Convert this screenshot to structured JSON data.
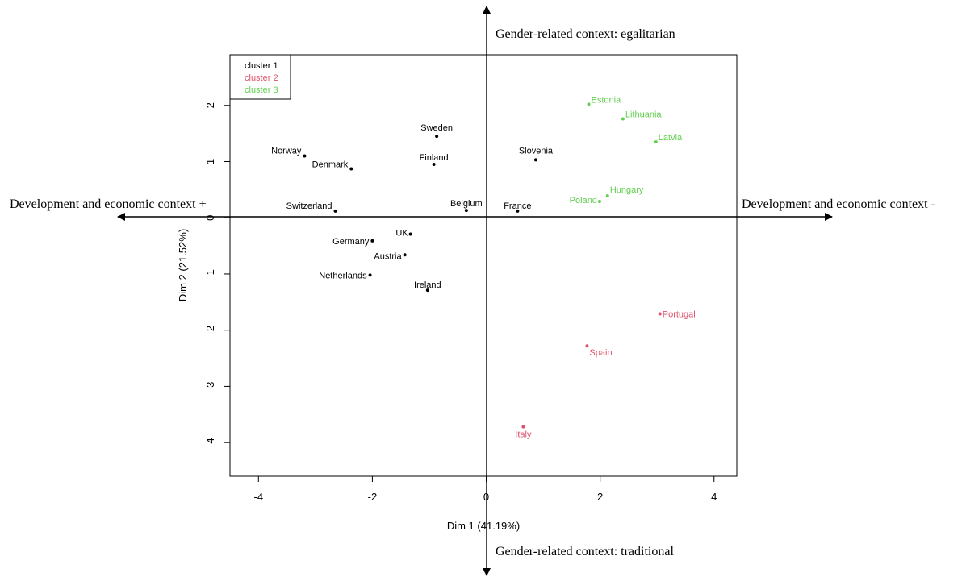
{
  "chart_data": {
    "type": "scatter",
    "xlabel": "Dim 1 (41.19%)",
    "ylabel": "Dim 2 (21.52%)",
    "xlim": [
      -4.5,
      4.4
    ],
    "ylim": [
      -4.6,
      2.9
    ],
    "x_ticks": [
      -4,
      -2,
      0,
      2,
      4
    ],
    "y_ticks": [
      2,
      1,
      0,
      -1,
      -2,
      -3,
      -4
    ],
    "reference_lines": {
      "x": 0,
      "y": 0,
      "style": "dashed"
    },
    "legend": {
      "position": "top-left",
      "entries": [
        {
          "label": "cluster 1",
          "color": "#000000"
        },
        {
          "label": "cluster 2",
          "color": "#DF536B"
        },
        {
          "label": "cluster 3",
          "color": "#61D04F"
        }
      ]
    },
    "series": [
      {
        "name": "cluster 1",
        "color": "#000000",
        "points": [
          {
            "label": "Norway",
            "x": -3.19,
            "y": 1.1
          },
          {
            "label": "Denmark",
            "x": -2.37,
            "y": 0.87
          },
          {
            "label": "Sweden",
            "x": -0.87,
            "y": 1.45
          },
          {
            "label": "Finland",
            "x": -0.92,
            "y": 0.95
          },
          {
            "label": "Slovenia",
            "x": 0.87,
            "y": 1.03
          },
          {
            "label": "Switzerland",
            "x": -2.65,
            "y": 0.12
          },
          {
            "label": "Belgium",
            "x": -0.35,
            "y": 0.13
          },
          {
            "label": "France",
            "x": 0.55,
            "y": 0.12
          },
          {
            "label": "UK",
            "x": -1.33,
            "y": -0.29
          },
          {
            "label": "Germany",
            "x": -2.0,
            "y": -0.41
          },
          {
            "label": "Austria",
            "x": -1.43,
            "y": -0.66
          },
          {
            "label": "Netherlands",
            "x": -2.04,
            "y": -1.02
          },
          {
            "label": "Ireland",
            "x": -1.03,
            "y": -1.29
          }
        ]
      },
      {
        "name": "cluster 2",
        "color": "#DF536B",
        "points": [
          {
            "label": "Portugal",
            "x": 3.05,
            "y": -1.71
          },
          {
            "label": "Spain",
            "x": 1.77,
            "y": -2.28
          },
          {
            "label": "Italy",
            "x": 0.65,
            "y": -3.72
          }
        ]
      },
      {
        "name": "cluster 3",
        "color": "#61D04F",
        "points": [
          {
            "label": "Estonia",
            "x": 1.8,
            "y": 2.02
          },
          {
            "label": "Lithuania",
            "x": 2.4,
            "y": 1.76
          },
          {
            "label": "Latvia",
            "x": 2.98,
            "y": 1.35
          },
          {
            "label": "Hungary",
            "x": 2.13,
            "y": 0.39
          },
          {
            "label": "Poland",
            "x": 1.99,
            "y": 0.29
          }
        ]
      }
    ]
  },
  "annotations": {
    "top": "Gender-related context: egalitarian",
    "bottom": "Gender-related context: traditional",
    "left": "Development and economic context +",
    "right": "Development and economic context -"
  }
}
